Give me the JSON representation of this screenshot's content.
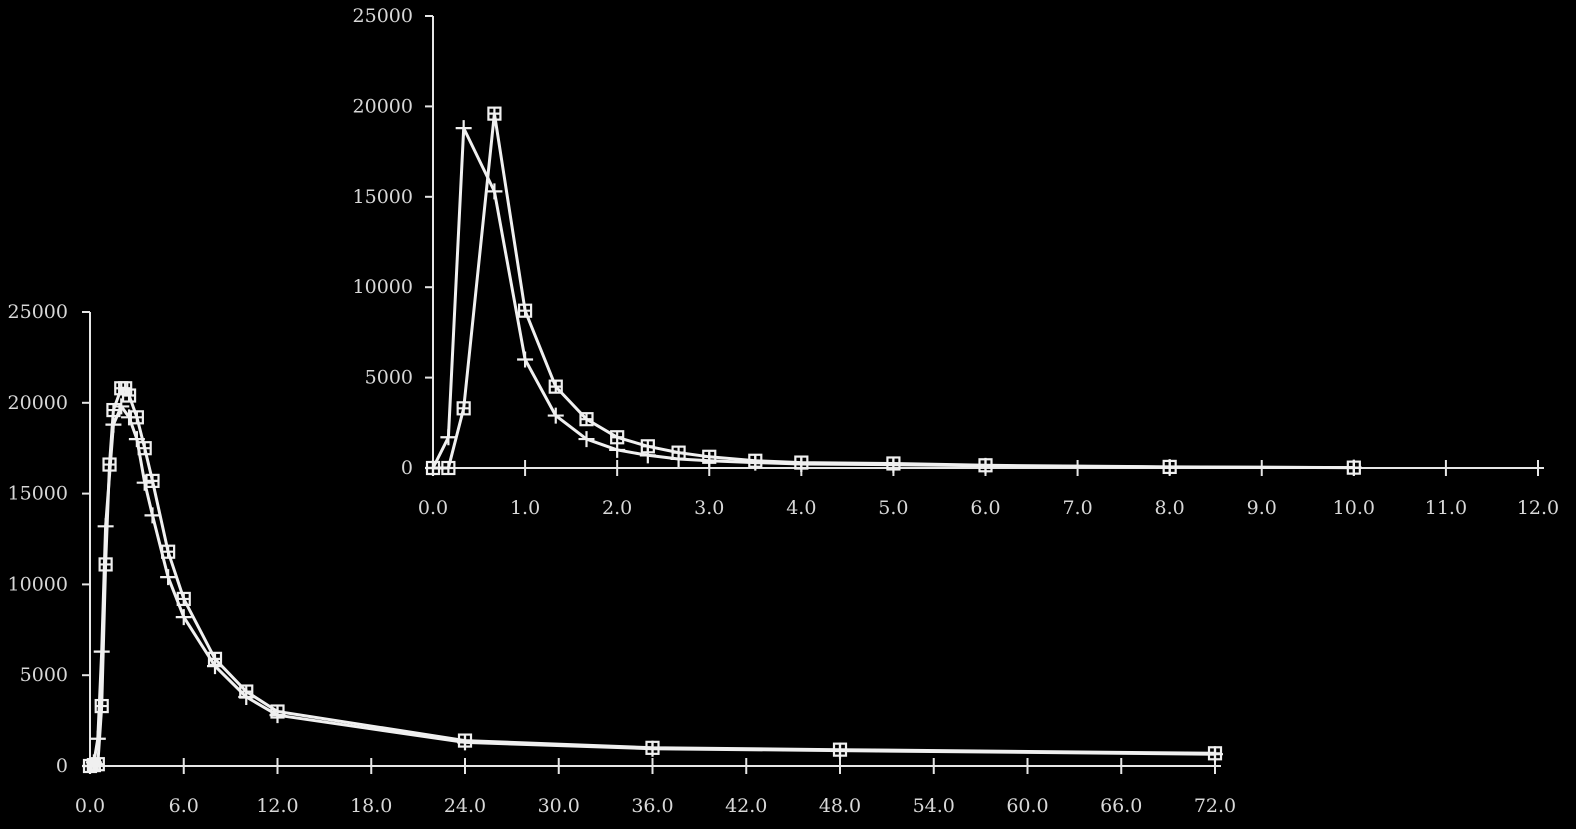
{
  "chart_data": [
    {
      "type": "line",
      "x_ticks": [
        "0.0",
        "6.0",
        "12.0",
        "18.0",
        "24.0",
        "30.0",
        "36.0",
        "42.0",
        "48.0",
        "54.0",
        "60.0",
        "66.0",
        "72.0"
      ],
      "y_ticks": [
        "0",
        "5000",
        "10000",
        "15000",
        "20000",
        "25000"
      ],
      "xlim": [
        0,
        72
      ],
      "ylim": [
        0,
        25000
      ],
      "series": [
        {
          "marker": "square-plus",
          "points": [
            [
              0,
              0
            ],
            [
              0.25,
              50
            ],
            [
              0.5,
              100
            ],
            [
              0.75,
              3300
            ],
            [
              1,
              11100
            ],
            [
              1.25,
              16600
            ],
            [
              1.5,
              19600
            ],
            [
              2,
              20800
            ],
            [
              2.25,
              20800
            ],
            [
              2.5,
              20400
            ],
            [
              3,
              19200
            ],
            [
              3.5,
              17500
            ],
            [
              4,
              15700
            ],
            [
              5,
              11800
            ],
            [
              6,
              9200
            ],
            [
              8,
              5900
            ],
            [
              10,
              4100
            ],
            [
              12,
              3000
            ],
            [
              24,
              1400
            ],
            [
              36,
              1000
            ],
            [
              48,
              900
            ],
            [
              72,
              700
            ]
          ]
        },
        {
          "marker": "plus",
          "points": [
            [
              0,
              0
            ],
            [
              0.25,
              200
            ],
            [
              0.5,
              1500
            ],
            [
              0.75,
              6300
            ],
            [
              1,
              13200
            ],
            [
              1.5,
              18800
            ],
            [
              2,
              19800
            ],
            [
              2.5,
              19200
            ],
            [
              3,
              18000
            ],
            [
              3.5,
              15600
            ],
            [
              4,
              13800
            ],
            [
              5,
              10400
            ],
            [
              6,
              8200
            ],
            [
              8,
              5500
            ],
            [
              10,
              3800
            ],
            [
              12,
              2800
            ],
            [
              24,
              1300
            ],
            [
              36,
              950
            ],
            [
              48,
              850
            ],
            [
              72,
              650
            ]
          ]
        }
      ]
    },
    {
      "type": "line",
      "x_ticks": [
        "0.0",
        "1.0",
        "2.0",
        "3.0",
        "4.0",
        "5.0",
        "6.0",
        "7.0",
        "8.0",
        "9.0",
        "10.0",
        "11.0",
        "12.0"
      ],
      "y_ticks": [
        "0",
        "5000",
        "10000",
        "15000",
        "20000",
        "25000"
      ],
      "xlim": [
        0,
        12
      ],
      "ylim": [
        0,
        25000
      ],
      "series": [
        {
          "marker": "square-plus",
          "points": [
            [
              0,
              0
            ],
            [
              0.167,
              0
            ],
            [
              0.333,
              3300
            ],
            [
              0.667,
              19600
            ],
            [
              1,
              8700
            ],
            [
              1.333,
              4500
            ],
            [
              1.667,
              2700
            ],
            [
              2,
              1700
            ],
            [
              2.333,
              1200
            ],
            [
              2.667,
              850
            ],
            [
              3,
              620
            ],
            [
              3.5,
              400
            ],
            [
              4,
              300
            ],
            [
              5,
              250
            ],
            [
              6,
              150
            ],
            [
              8,
              60
            ],
            [
              10,
              20
            ]
          ]
        },
        {
          "marker": "plus",
          "points": [
            [
              0,
              0
            ],
            [
              0.167,
              1700
            ],
            [
              0.333,
              18800
            ],
            [
              0.667,
              15300
            ],
            [
              1,
              6000
            ],
            [
              1.333,
              2900
            ],
            [
              1.667,
              1600
            ],
            [
              2,
              1000
            ],
            [
              2.333,
              700
            ],
            [
              2.667,
              500
            ],
            [
              3,
              400
            ],
            [
              3.5,
              300
            ],
            [
              4,
              220
            ],
            [
              5,
              180
            ],
            [
              6,
              120
            ],
            [
              8,
              50
            ],
            [
              10,
              20
            ]
          ]
        }
      ]
    }
  ]
}
